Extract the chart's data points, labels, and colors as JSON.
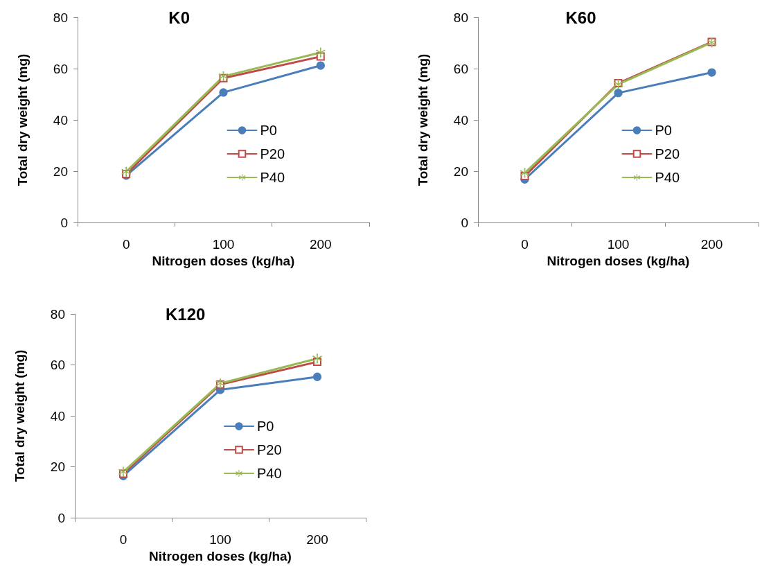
{
  "chart_data": [
    {
      "type": "line",
      "title": "K0",
      "xlabel": "Nitrogen doses (kg/ha)",
      "ylabel": "Total dry weight (mg)",
      "categories": [
        "0",
        "100",
        "200"
      ],
      "ylim": [
        0,
        80
      ],
      "yticks": [
        0,
        20,
        40,
        60,
        80
      ],
      "grid": false,
      "legend": "right",
      "series": [
        {
          "name": "P0",
          "color": "#4a7ebb",
          "marker": "circle",
          "values": [
            18.3,
            50.7,
            61.2
          ]
        },
        {
          "name": "P20",
          "color": "#be4b48",
          "marker": "square",
          "values": [
            18.9,
            56.3,
            64.7
          ]
        },
        {
          "name": "P40",
          "color": "#98b954",
          "marker": "cross",
          "values": [
            19.8,
            57,
            66.3
          ]
        }
      ]
    },
    {
      "type": "line",
      "title": "K60",
      "xlabel": "Nitrogen doses (kg/ha)",
      "ylabel": "Total dry weight (mg)",
      "categories": [
        "0",
        "100",
        "200"
      ],
      "ylim": [
        0,
        80
      ],
      "yticks": [
        0,
        20,
        40,
        60,
        80
      ],
      "grid": false,
      "legend": "right",
      "series": [
        {
          "name": "P0",
          "color": "#4a7ebb",
          "marker": "circle",
          "values": [
            16.8,
            50.5,
            58.5
          ]
        },
        {
          "name": "P20",
          "color": "#be4b48",
          "marker": "square",
          "values": [
            18.1,
            54.3,
            70.4
          ]
        },
        {
          "name": "P40",
          "color": "#98b954",
          "marker": "cross",
          "values": [
            19.3,
            53.9,
            70.2
          ]
        }
      ]
    },
    {
      "type": "line",
      "title": "K120",
      "xlabel": "Nitrogen doses (kg/ha)",
      "ylabel": "Total dry weight (mg)",
      "categories": [
        "0",
        "100",
        "200"
      ],
      "ylim": [
        0,
        80
      ],
      "yticks": [
        0,
        20,
        40,
        60,
        80
      ],
      "grid": false,
      "legend": "right",
      "series": [
        {
          "name": "P0",
          "color": "#4a7ebb",
          "marker": "circle",
          "values": [
            16.4,
            50.2,
            55.3
          ]
        },
        {
          "name": "P20",
          "color": "#be4b48",
          "marker": "square",
          "values": [
            17.3,
            52.3,
            61.2
          ]
        },
        {
          "name": "P40",
          "color": "#98b954",
          "marker": "cross",
          "values": [
            18,
            52.7,
            62.5
          ]
        }
      ]
    }
  ]
}
